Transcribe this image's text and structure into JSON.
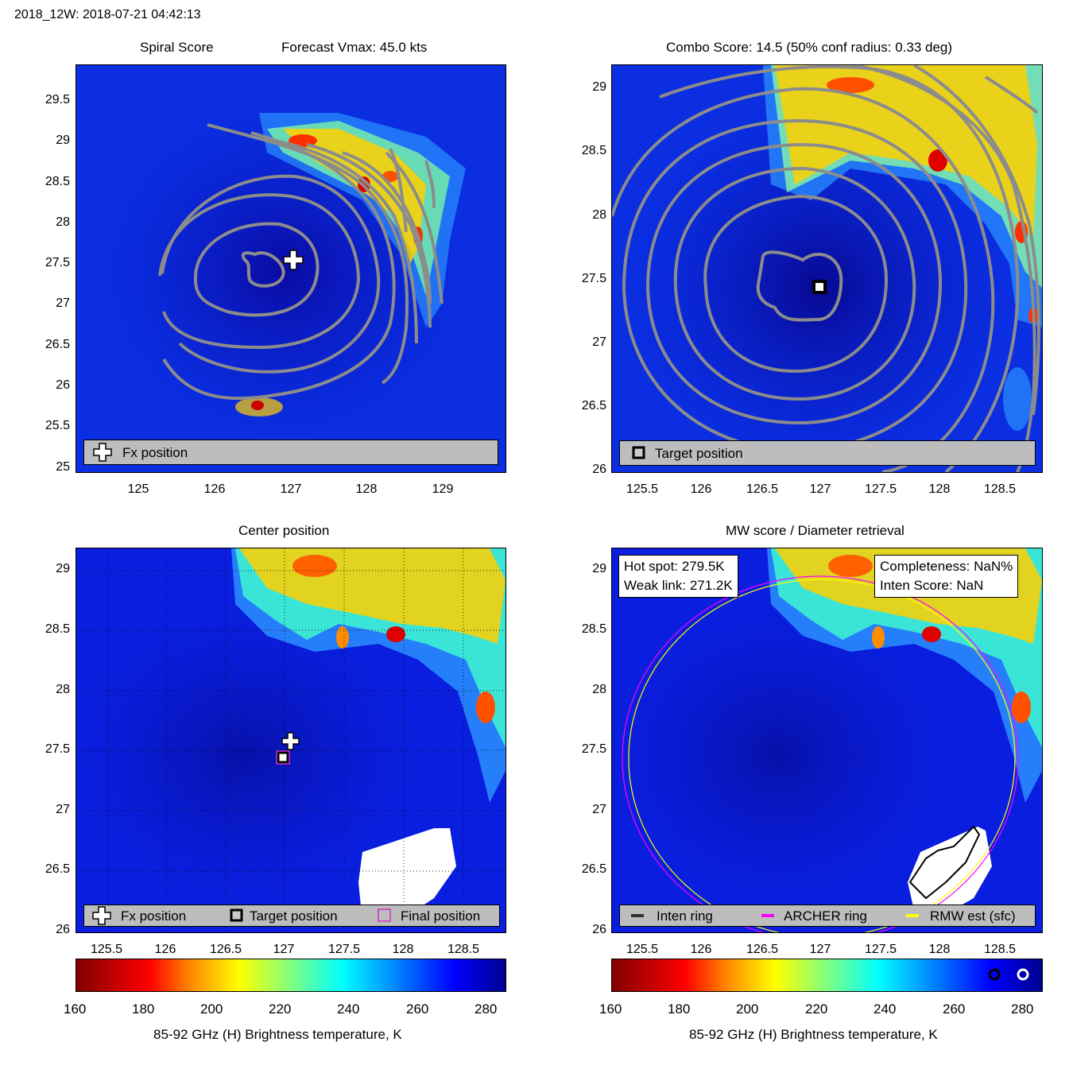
{
  "header": {
    "title": "2018_12W: 2018-07-21 04:42:13"
  },
  "panels": {
    "spiral": {
      "title": "Spiral Score",
      "subtitle": "Forecast Vmax: 45.0 kts",
      "yticks": [
        "29.5",
        "29",
        "28.5",
        "28",
        "27.5",
        "27",
        "26.5",
        "26",
        "25.5",
        "25"
      ],
      "xticks": [
        "125",
        "126",
        "127",
        "128",
        "129"
      ],
      "legend": {
        "fx": "Fx position"
      }
    },
    "combo": {
      "title": "Combo Score: 14.5  (50% conf radius: 0.33 deg)",
      "yticks": [
        "29",
        "28.5",
        "28",
        "27.5",
        "27",
        "26.5",
        "26"
      ],
      "xticks": [
        "125.5",
        "126",
        "126.5",
        "127",
        "127.5",
        "128",
        "128.5"
      ],
      "legend": {
        "target": "Target position"
      }
    },
    "center": {
      "title": "Center position",
      "yticks": [
        "29",
        "28.5",
        "28",
        "27.5",
        "27",
        "26.5",
        "26"
      ],
      "xticks": [
        "125.5",
        "126",
        "126.5",
        "127",
        "127.5",
        "128",
        "128.5"
      ],
      "legend": {
        "fx": "Fx position",
        "target": "Target position",
        "final": "Final position"
      }
    },
    "mw": {
      "title": "MW score / Diameter retrieval",
      "yticks": [
        "29",
        "28.5",
        "28",
        "27.5",
        "27",
        "26.5",
        "26"
      ],
      "xticks": [
        "125.5",
        "126",
        "126.5",
        "127",
        "127.5",
        "128",
        "128.5"
      ],
      "info_left": {
        "hot": "Hot spot: 279.5K",
        "weak": "Weak link: 271.2K"
      },
      "info_right": {
        "completeness": "Completeness: NaN%",
        "inten": "Inten Score: NaN"
      },
      "legend": {
        "inten": "Inten ring",
        "archer": "ARCHER ring",
        "rmw": "RMW est (sfc)"
      }
    }
  },
  "colorbar": {
    "ticks": [
      "160",
      "180",
      "200",
      "220",
      "240",
      "260",
      "280"
    ],
    "label": "85-92 GHz (H) Brightness temperature, K"
  },
  "colors": {
    "ocean": "#0a1ccc",
    "contour": "#8c8c8c",
    "legend_bg": "#bdbdbd",
    "archer_ring": "#ff00ff",
    "rmw_ring": "#ffff00"
  },
  "chart_data": [
    {
      "type": "heatmap",
      "title": "Spiral Score",
      "subtitle": "Forecast Vmax: 45.0 kts",
      "xlim": [
        124.2,
        129.8
      ],
      "ylim": [
        25,
        29.9
      ],
      "xticks": [
        125,
        126,
        127,
        128,
        129
      ],
      "yticks": [
        25,
        25.5,
        26,
        26.5,
        27,
        27.5,
        28,
        28.5,
        29,
        29.5
      ],
      "markers": [
        {
          "name": "Fx position",
          "lon": 127.05,
          "lat": 27.6
        }
      ],
      "center": {
        "lon": 126.55,
        "lat": 27.5
      }
    },
    {
      "type": "heatmap",
      "title": "Combo Score: 14.5  (50% conf radius: 0.33 deg)",
      "xlim": [
        125.25,
        128.85
      ],
      "ylim": [
        26,
        29.1
      ],
      "xticks": [
        125.5,
        126,
        126.5,
        127,
        127.5,
        128,
        128.5
      ],
      "yticks": [
        26,
        26.5,
        27,
        27.5,
        28,
        28.5,
        29
      ],
      "markers": [
        {
          "name": "Target position",
          "lon": 126.99,
          "lat": 27.44
        }
      ],
      "center": {
        "lon": 127.0,
        "lat": 27.4
      }
    },
    {
      "type": "heatmap",
      "title": "Center position",
      "xlim": [
        125.25,
        128.85
      ],
      "ylim": [
        26,
        29.1
      ],
      "xticks": [
        125.5,
        126,
        126.5,
        127,
        127.5,
        128,
        128.5
      ],
      "yticks": [
        26,
        26.5,
        27,
        27.5,
        28,
        28.5,
        29
      ],
      "markers": [
        {
          "name": "Fx position",
          "lon": 127.05,
          "lat": 27.59
        },
        {
          "name": "Target position",
          "lon": 126.99,
          "lat": 27.44
        },
        {
          "name": "Final position",
          "lon": 126.99,
          "lat": 27.44
        }
      ]
    },
    {
      "type": "heatmap",
      "title": "MW score / Diameter retrieval",
      "xlim": [
        125.25,
        128.85
      ],
      "ylim": [
        26,
        29.1
      ],
      "xticks": [
        125.5,
        126,
        126.5,
        127,
        127.5,
        128,
        128.5
      ],
      "yticks": [
        26,
        26.5,
        27,
        27.5,
        28,
        28.5,
        29
      ],
      "rings": [
        {
          "name": "ARCHER ring",
          "center_lon": 127.0,
          "center_lat": 27.44,
          "radius_lon": 1.65,
          "radius_lat": 1.44
        },
        {
          "name": "RMW est (sfc)",
          "center_lon": 127.02,
          "center_lat": 27.44,
          "radius_lon": 1.61,
          "radius_lat": 1.42
        }
      ]
    },
    {
      "type": "colorbar",
      "range": [
        160,
        285
      ],
      "ticks": [
        160,
        180,
        200,
        220,
        240,
        260,
        280
      ],
      "label": "85-92 GHz (H) Brightness temperature, K"
    }
  ]
}
